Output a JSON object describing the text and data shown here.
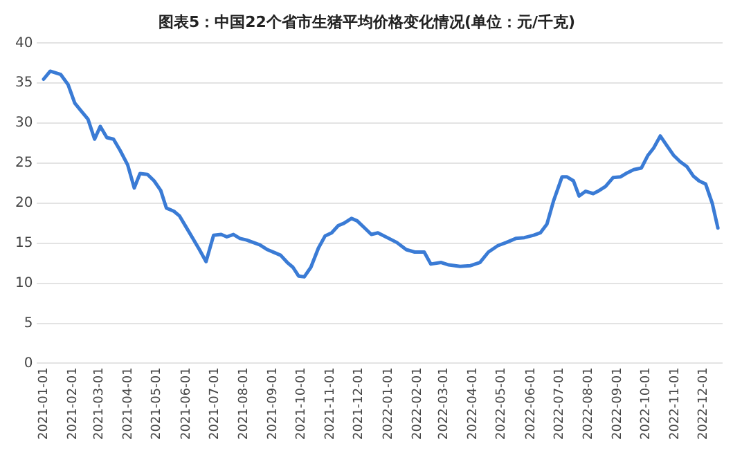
{
  "chart_data": {
    "type": "line",
    "title": "图表5：中国22个省市生猪平均价格变化情况(单位：元/千克)",
    "x": [
      "2021-01-01",
      "2021-01-08",
      "2021-01-19",
      "2021-01-27",
      "2021-02-03",
      "2021-02-10",
      "2021-02-17",
      "2021-02-24",
      "2021-03-02",
      "2021-03-09",
      "2021-03-16",
      "2021-03-23",
      "2021-03-31",
      "2021-04-07",
      "2021-04-13",
      "2021-04-21",
      "2021-04-28",
      "2021-05-05",
      "2021-05-11",
      "2021-05-19",
      "2021-05-25",
      "2021-06-01",
      "2021-06-08",
      "2021-06-15",
      "2021-06-22",
      "2021-06-30",
      "2021-07-08",
      "2021-07-14",
      "2021-07-21",
      "2021-07-28",
      "2021-08-04",
      "2021-08-11",
      "2021-08-18",
      "2021-08-26",
      "2021-09-03",
      "2021-09-09",
      "2021-09-16",
      "2021-09-22",
      "2021-09-28",
      "2021-10-04",
      "2021-10-11",
      "2021-10-19",
      "2021-10-26",
      "2021-11-02",
      "2021-11-09",
      "2021-11-15",
      "2021-11-23",
      "2021-11-29",
      "2021-12-07",
      "2021-12-14",
      "2021-12-21",
      "2022-01-10",
      "2022-01-20",
      "2022-01-29",
      "2022-02-08",
      "2022-02-15",
      "2022-02-26",
      "2022-03-06",
      "2022-03-18",
      "2022-03-29",
      "2022-04-08",
      "2022-04-17",
      "2022-04-27",
      "2022-05-06",
      "2022-05-16",
      "2022-05-25",
      "2022-06-04",
      "2022-06-11",
      "2022-06-18",
      "2022-06-25",
      "2022-07-04",
      "2022-07-09",
      "2022-07-16",
      "2022-07-22",
      "2022-07-29",
      "2022-08-06",
      "2022-08-11",
      "2022-08-19",
      "2022-08-27",
      "2022-09-04",
      "2022-09-11",
      "2022-09-18",
      "2022-09-26",
      "2022-10-03",
      "2022-10-09",
      "2022-10-16",
      "2022-10-23",
      "2022-10-30",
      "2022-11-06",
      "2022-11-13",
      "2022-11-20",
      "2022-11-26",
      "2022-12-03",
      "2022-12-10",
      "2022-12-16"
    ],
    "series": [
      {
        "color": "#3a7bd5",
        "values": [
          35.5,
          36.5,
          36.1,
          34.8,
          32.5,
          31.5,
          30.5,
          28.0,
          29.6,
          28.2,
          28.0,
          26.6,
          24.8,
          21.9,
          23.7,
          23.6,
          22.8,
          21.6,
          19.4,
          19.0,
          18.4,
          17.0,
          15.6,
          14.2,
          12.7,
          16.0,
          16.1,
          15.8,
          16.1,
          15.6,
          15.4,
          15.1,
          14.8,
          14.2,
          13.8,
          13.5,
          12.6,
          12.0,
          10.9,
          10.8,
          12.0,
          14.4,
          15.9,
          16.3,
          17.2,
          17.5,
          18.1,
          17.8,
          16.9,
          16.1,
          16.3,
          15.1,
          14.2,
          13.9,
          13.9,
          12.4,
          12.6,
          12.3,
          12.1,
          12.2,
          12.6,
          13.9,
          14.7,
          15.1,
          15.6,
          15.7,
          16.0,
          16.3,
          17.4,
          20.3,
          23.3,
          23.3,
          22.8,
          20.9,
          21.5,
          21.2,
          21.5,
          22.1,
          23.2,
          23.3,
          23.8,
          24.2,
          24.4,
          26.0,
          26.9,
          28.4,
          27.2,
          26.0,
          25.2,
          24.6,
          23.4,
          22.8,
          22.4,
          20.0,
          16.9
        ]
      }
    ],
    "xlim": [
      "2020-12-25",
      "2022-12-21"
    ],
    "xticks": [
      "2021-01-01",
      "2021-02-01",
      "2021-03-01",
      "2021-04-01",
      "2021-05-01",
      "2021-06-01",
      "2021-07-01",
      "2021-08-01",
      "2021-09-01",
      "2021-10-01",
      "2021-11-01",
      "2021-12-01",
      "2022-01-01",
      "2022-02-01",
      "2022-03-01",
      "2022-04-01",
      "2022-05-01",
      "2022-06-01",
      "2022-07-01",
      "2022-08-01",
      "2022-09-01",
      "2022-10-01",
      "2022-11-01",
      "2022-12-01"
    ],
    "ylim": [
      0,
      40
    ],
    "yticks": [
      0,
      5,
      10,
      15,
      20,
      25,
      30,
      35,
      40
    ],
    "grid": "y",
    "legend": false,
    "marker": "none",
    "line_style": "solid"
  }
}
